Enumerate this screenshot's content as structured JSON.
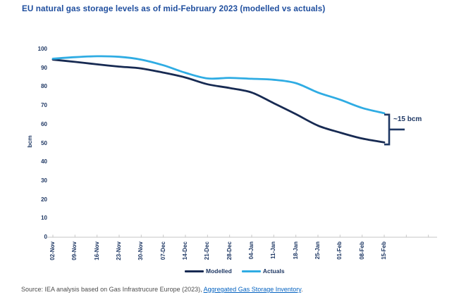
{
  "header": {
    "title": "EU natural gas storage levels as of mid-February 2023 (modelled vs actuals)"
  },
  "chart_data": {
    "type": "line",
    "title": "EU natural gas storage levels as of mid-February 2023 (modelled vs actuals)",
    "xlabel": "",
    "ylabel": "bcm",
    "ylim": [
      0,
      100
    ],
    "ytick_step": 10,
    "grid": false,
    "legend_position": "bottom",
    "categories": [
      "02-Nov",
      "09-Nov",
      "16-Nov",
      "23-Nov",
      "30-Nov",
      "07-Dec",
      "14-Dec",
      "21-Dec",
      "28-Dec",
      "04-Jan",
      "11-Jan",
      "18-Jan",
      "25-Jan",
      "01-Feb",
      "08-Feb",
      "15-Feb"
    ],
    "series": [
      {
        "name": "Modelled",
        "color": "#172A52",
        "values": [
          94.5,
          93.3,
          92.0,
          90.8,
          89.8,
          87.6,
          85.0,
          81.4,
          79.4,
          77.0,
          71.3,
          65.5,
          59.4,
          55.7,
          52.5,
          50.5
        ]
      },
      {
        "name": "Actuals",
        "color": "#2FACE3",
        "values": [
          95.0,
          95.8,
          96.3,
          96.0,
          94.5,
          91.5,
          87.5,
          84.5,
          84.8,
          84.3,
          83.8,
          82.0,
          77.0,
          73.2,
          68.8,
          66.0
        ]
      }
    ],
    "annotation": {
      "text": "~15 bcm",
      "meaning": "gap between Actuals and Modelled at 15-Feb"
    }
  },
  "source": {
    "prefix": "Source: IEA analysis based on Gas Infrastrucure Europe (2023), ",
    "link_text": "Aggregated Gas Storage Inventory",
    "suffix": "."
  },
  "colors": {
    "title": "#1F4E9E",
    "axis_text": "#1F3864",
    "axis_line": "#C6C6C6",
    "annotation": "#1F3864",
    "source_text": "#4D4D4D",
    "link": "#0563C1"
  }
}
